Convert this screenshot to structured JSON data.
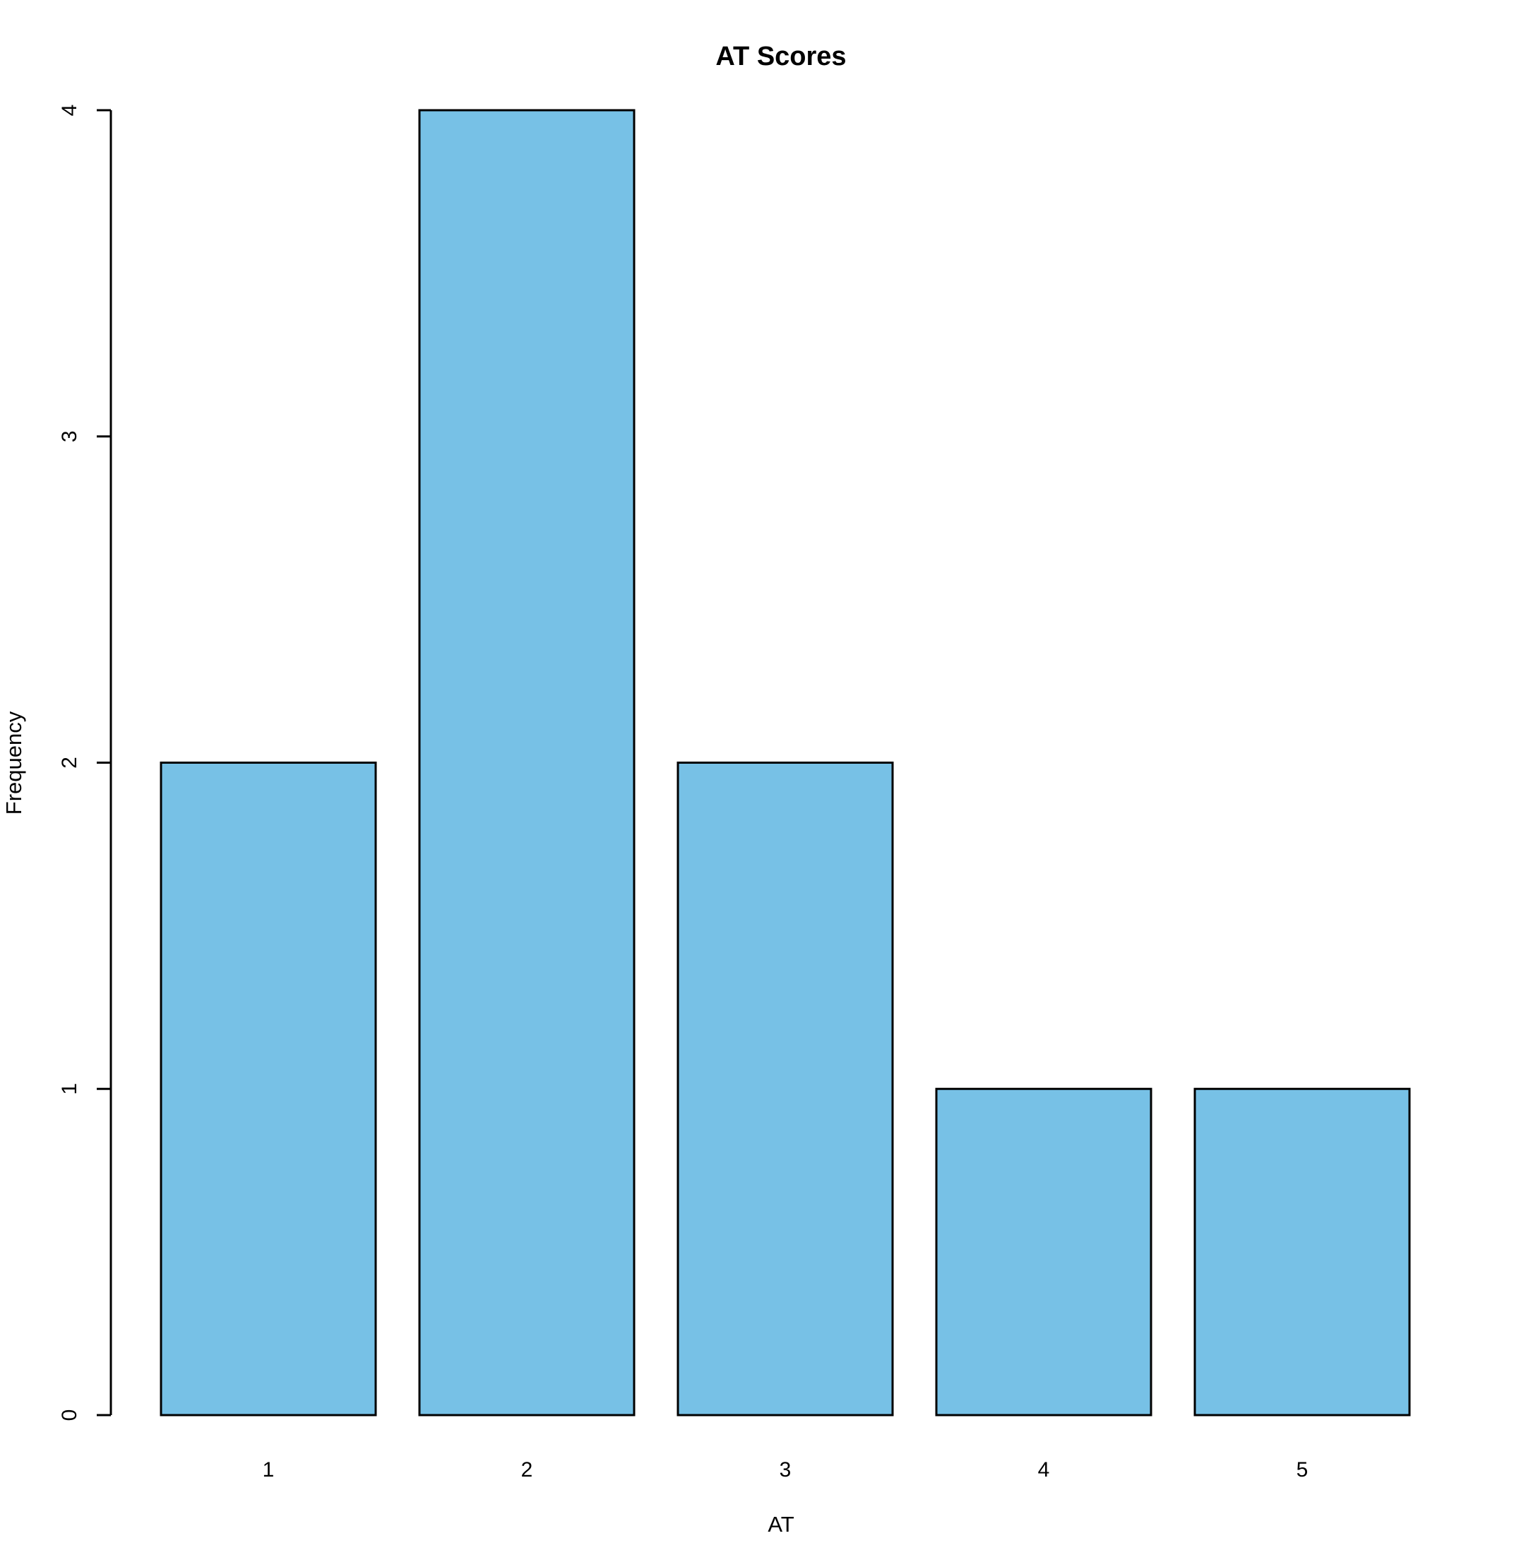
{
  "chart_data": {
    "type": "bar",
    "title": "AT Scores",
    "xlabel": "AT",
    "ylabel": "Frequency",
    "categories": [
      "1",
      "2",
      "3",
      "4",
      "5"
    ],
    "values": [
      2,
      4,
      2,
      1,
      1
    ],
    "ylim": [
      0,
      4
    ],
    "yticks": [
      "0",
      "1",
      "2",
      "3",
      "4"
    ],
    "grid": false,
    "legend": false,
    "bar_fill": "#77C1E6",
    "bar_stroke": "#000000",
    "axis_color": "#000000",
    "background": "#ffffff"
  }
}
